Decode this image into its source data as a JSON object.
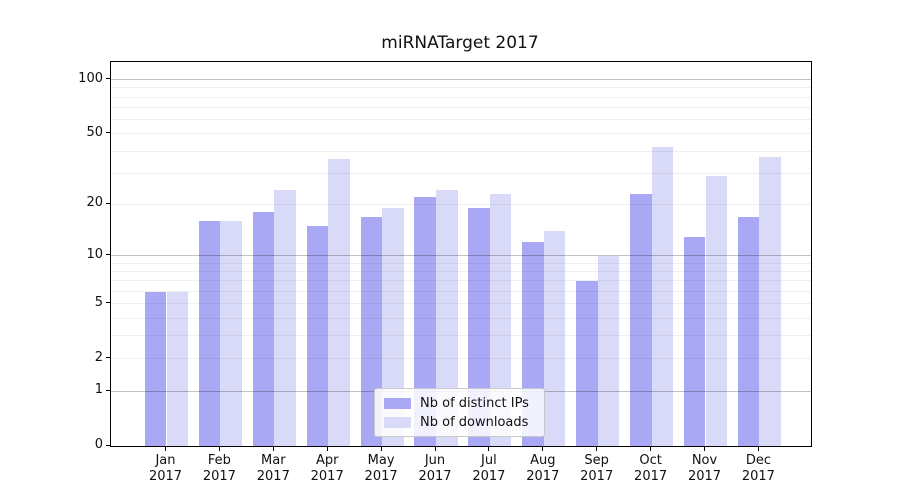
{
  "chart_data": {
    "type": "bar",
    "title": "miRNATarget 2017",
    "categories": [
      "Jan",
      "Feb",
      "Mar",
      "Apr",
      "May",
      "Jun",
      "Jul",
      "Aug",
      "Sep",
      "Oct",
      "Nov",
      "Dec"
    ],
    "category_year": "2017",
    "series": [
      {
        "name": "Nb of distinct IPs",
        "color": "#a8a8f5",
        "values": [
          6,
          16,
          18,
          15,
          17,
          22,
          19,
          12,
          7,
          23,
          13,
          17
        ]
      },
      {
        "name": "Nb of downloads",
        "color": "#d9d9f8",
        "values": [
          6,
          16,
          24,
          36,
          19,
          24,
          23,
          14,
          10,
          42,
          29,
          37
        ]
      }
    ],
    "xlabel": "",
    "ylabel": "",
    "yscale": "symlog (position proportional to log10(1+value))",
    "ylim": [
      0,
      125
    ],
    "yticks": [
      0,
      1,
      2,
      5,
      10,
      20,
      50,
      100
    ],
    "major_gridlines": [
      1,
      10,
      100
    ],
    "minor_gridlines": [
      2,
      3,
      4,
      5,
      6,
      7,
      8,
      9,
      20,
      30,
      40,
      50,
      60,
      70,
      80,
      90
    ],
    "grid": "on",
    "legend_position": "lower center"
  }
}
